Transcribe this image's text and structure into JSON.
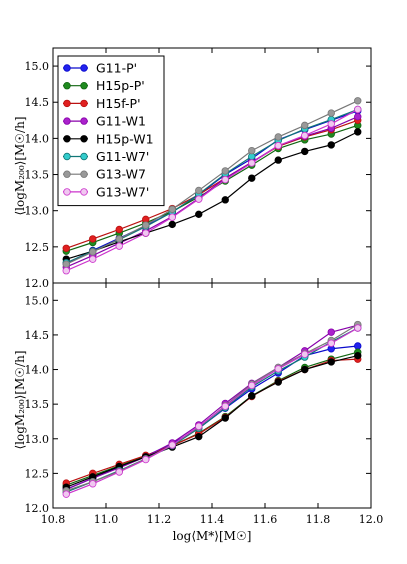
{
  "chart_data": [
    {
      "type": "line",
      "panel": "top",
      "xlim": [
        10.8,
        12.0
      ],
      "ylim": [
        12.0,
        15.25
      ],
      "xticks": [
        "",
        "",
        "",
        "",
        "",
        "",
        ""
      ],
      "yticks": [
        "12.0",
        "12.5",
        "13.0",
        "13.5",
        "14.0",
        "14.5",
        "15.0"
      ],
      "ylabel": "⟨logM₂₀₀⟩[M☉/h]",
      "grid": false,
      "legend_position": "top-left",
      "x": [
        10.85,
        10.95,
        11.05,
        11.15,
        11.25,
        11.35,
        11.45,
        11.55,
        11.65,
        11.75,
        11.85,
        11.95
      ],
      "series": [
        {
          "name": "G11-P'",
          "color": "#0a0acc",
          "fill": "#2222ee",
          "values": [
            12.27,
            12.45,
            12.62,
            12.79,
            12.98,
            13.22,
            13.5,
            13.72,
            13.98,
            14.12,
            14.25,
            14.38
          ]
        },
        {
          "name": "H15p-P'",
          "color": "#116611",
          "fill": "#1f8a1f",
          "values": [
            12.44,
            12.56,
            12.69,
            12.83,
            12.99,
            13.19,
            13.41,
            13.63,
            13.86,
            13.98,
            14.06,
            14.18
          ]
        },
        {
          "name": "H15f-P'",
          "color": "#bb1111",
          "fill": "#e02020",
          "values": [
            12.48,
            12.61,
            12.74,
            12.88,
            13.03,
            13.22,
            13.45,
            13.67,
            13.89,
            14.02,
            14.12,
            14.25
          ]
        },
        {
          "name": "G11-W1",
          "color": "#8800aa",
          "fill": "#aa22cc",
          "values": [
            12.22,
            12.38,
            12.55,
            12.72,
            12.92,
            13.17,
            13.45,
            13.67,
            13.9,
            14.03,
            14.14,
            14.3
          ]
        },
        {
          "name": "H15p-W1",
          "color": "#000000",
          "fill": "#000000",
          "values": [
            12.33,
            12.44,
            12.57,
            12.69,
            12.81,
            12.95,
            13.15,
            13.45,
            13.7,
            13.82,
            13.91,
            14.09
          ]
        },
        {
          "name": "G11-W7'",
          "color": "#117777",
          "fill": "#33cccc",
          "values": [
            12.28,
            12.44,
            12.6,
            12.78,
            12.98,
            13.23,
            13.51,
            13.75,
            13.97,
            14.13,
            14.26,
            14.4
          ]
        },
        {
          "name": "G13-W7",
          "color": "#777777",
          "fill": "#999999",
          "values": [
            12.26,
            12.43,
            12.61,
            12.8,
            13.02,
            13.28,
            13.55,
            13.83,
            14.02,
            14.18,
            14.35,
            14.52
          ]
        },
        {
          "name": "G13-W7'",
          "color": "#cc33cc",
          "fill": "#f0c8f0",
          "values": [
            12.17,
            12.33,
            12.51,
            12.69,
            12.91,
            13.16,
            13.43,
            13.66,
            13.9,
            14.04,
            14.2,
            14.4
          ]
        }
      ]
    },
    {
      "type": "line",
      "panel": "bottom",
      "xlim": [
        10.8,
        12.0
      ],
      "ylim": [
        12.0,
        15.25
      ],
      "xticks": [
        "10.8",
        "11.0",
        "11.2",
        "11.4",
        "11.6",
        "11.8",
        "12.0"
      ],
      "yticks": [
        "12.0",
        "12.5",
        "13.0",
        "13.5",
        "14.0",
        "14.5",
        "15.0"
      ],
      "xlabel": "log⟨M*⟩[M☉]",
      "ylabel": "⟨logM₂₀₀⟩[M☉/h]",
      "grid": false,
      "x": [
        10.85,
        10.95,
        11.05,
        11.15,
        11.25,
        11.35,
        11.45,
        11.55,
        11.65,
        11.75,
        11.85,
        11.95
      ],
      "series": [
        {
          "name": "G11-P'",
          "color": "#0a0acc",
          "fill": "#2222ee",
          "values": [
            12.27,
            12.43,
            12.59,
            12.75,
            12.93,
            13.15,
            13.44,
            13.72,
            13.95,
            14.2,
            14.3,
            14.34
          ]
        },
        {
          "name": "H15p-P'",
          "color": "#116611",
          "fill": "#1f8a1f",
          "values": [
            12.33,
            12.47,
            12.61,
            12.75,
            12.9,
            13.08,
            13.32,
            13.62,
            13.84,
            14.03,
            14.15,
            14.25
          ]
        },
        {
          "name": "H15f-P'",
          "color": "#bb1111",
          "fill": "#e02020",
          "values": [
            12.36,
            12.5,
            12.63,
            12.76,
            12.9,
            13.07,
            13.31,
            13.61,
            13.83,
            14.0,
            14.13,
            14.15
          ]
        },
        {
          "name": "G11-W1",
          "color": "#8800aa",
          "fill": "#aa22cc",
          "values": [
            12.27,
            12.43,
            12.58,
            12.74,
            12.94,
            13.2,
            13.51,
            13.8,
            14.03,
            14.27,
            14.54,
            14.64
          ]
        },
        {
          "name": "H15p-W1",
          "color": "#000000",
          "fill": "#000000",
          "values": [
            12.3,
            12.45,
            12.6,
            12.74,
            12.88,
            13.03,
            13.3,
            13.62,
            13.82,
            14.0,
            14.11,
            14.2
          ]
        },
        {
          "name": "G11-W7'",
          "color": "#117777",
          "fill": "#33cccc",
          "values": [
            12.23,
            12.38,
            12.54,
            12.71,
            12.9,
            13.15,
            13.45,
            13.75,
            13.98,
            14.18,
            14.4,
            14.6
          ]
        },
        {
          "name": "G13-W7",
          "color": "#777777",
          "fill": "#999999",
          "values": [
            12.25,
            12.38,
            12.53,
            12.71,
            12.91,
            13.17,
            13.48,
            13.79,
            14.03,
            14.23,
            14.42,
            14.65
          ]
        },
        {
          "name": "G13-W7'",
          "color": "#cc33cc",
          "fill": "#f0c8f0",
          "values": [
            12.2,
            12.35,
            12.52,
            12.7,
            12.91,
            13.18,
            13.47,
            13.77,
            14.01,
            14.22,
            14.38,
            14.6
          ]
        }
      ]
    }
  ]
}
